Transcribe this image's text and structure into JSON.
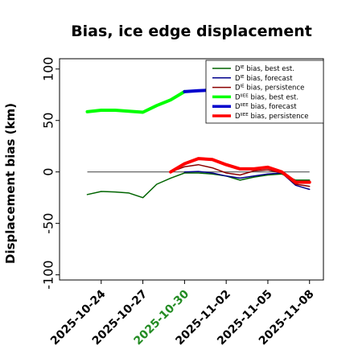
{
  "chart_data": {
    "type": "line",
    "title": "Bias, ice edge displacement",
    "ylabel": "Displacement bias (km)",
    "xlabel": "",
    "ylim": [
      -105,
      110
    ],
    "yticks": [
      -100,
      -50,
      0,
      50,
      100
    ],
    "grid": false,
    "legend_position": "top-right",
    "xlim": [
      "2025-10-21",
      "2025-11-09"
    ],
    "xticks": [
      {
        "date": "2025-10-24",
        "label": "2025-10-24",
        "color": "#000000"
      },
      {
        "date": "2025-10-27",
        "label": "2025-10-27",
        "color": "#000000"
      },
      {
        "date": "2025-10-30",
        "label": "2025-10-30",
        "color": "#228b22"
      },
      {
        "date": "2025-11-02",
        "label": "2025-11-02",
        "color": "#000000"
      },
      {
        "date": "2025-11-05",
        "label": "2025-11-05",
        "color": "#000000"
      },
      {
        "date": "2025-11-08",
        "label": "2025-11-08",
        "color": "#000000"
      }
    ],
    "zero_line": {
      "y": 0,
      "color": "#555555"
    },
    "series": [
      {
        "name_main": "D",
        "name_sup": "IE",
        "name_rest": " bias, best est.",
        "color": "#006400",
        "width": 1.5,
        "x": [
          "2025-10-23",
          "2025-10-24",
          "2025-10-25",
          "2025-10-26",
          "2025-10-27",
          "2025-10-28",
          "2025-10-29",
          "2025-10-30",
          "2025-10-31",
          "2025-11-01",
          "2025-11-02",
          "2025-11-03",
          "2025-11-04",
          "2025-11-05",
          "2025-11-06",
          "2025-11-07",
          "2025-11-08"
        ],
        "y": [
          -22,
          -19,
          -19.5,
          -20.5,
          -25,
          -12,
          -6,
          -1,
          -1,
          -2,
          -4,
          -8,
          -5,
          -3,
          -2,
          -8,
          -8
        ]
      },
      {
        "name_main": "D",
        "name_sup": "IE",
        "name_rest": " bias, forecast",
        "color": "#00008b",
        "width": 1.5,
        "x": [
          "2025-10-30",
          "2025-10-31",
          "2025-11-01",
          "2025-11-02",
          "2025-11-03",
          "2025-11-04",
          "2025-11-05",
          "2025-11-06",
          "2025-11-07",
          "2025-11-08"
        ],
        "y": [
          0,
          0.5,
          -1,
          -4,
          -6,
          -4,
          -2,
          -1,
          -13,
          -17
        ]
      },
      {
        "name_main": "D",
        "name_sup": "IE",
        "name_rest": " bias, persistence",
        "color": "#8b0000",
        "width": 1.5,
        "x": [
          "2025-10-29",
          "2025-10-30",
          "2025-10-31",
          "2025-11-01",
          "2025-11-02",
          "2025-11-03",
          "2025-11-04",
          "2025-11-05",
          "2025-11-06",
          "2025-11-07",
          "2025-11-08"
        ],
        "y": [
          0,
          5,
          7,
          4,
          -1,
          -3,
          1,
          2,
          -1,
          -12,
          -14
        ]
      },
      {
        "name_main": "D",
        "name_sup": "IIEE",
        "name_rest": " bias, best est.",
        "color": "#00ff00",
        "width": 4,
        "x": [
          "2025-10-23",
          "2025-10-24",
          "2025-10-25",
          "2025-10-26",
          "2025-10-27",
          "2025-10-28",
          "2025-10-29",
          "2025-10-30"
        ],
        "y": [
          58.5,
          60,
          60,
          59,
          58,
          64.5,
          70,
          78
        ]
      },
      {
        "name_main": "D",
        "name_sup": "IIEE",
        "name_rest": " bias, forecast",
        "color": "#0000cd",
        "width": 4,
        "x": [
          "2025-10-30",
          "2025-10-31",
          "2025-11-01",
          "2025-11-02"
        ],
        "y": [
          78,
          79,
          79.5,
          80
        ]
      },
      {
        "name_main": "D",
        "name_sup": "IIEE",
        "name_rest": " bias, persistence",
        "color": "#ff0000",
        "width": 4,
        "x": [
          "2025-10-29",
          "2025-10-30",
          "2025-10-31",
          "2025-11-01",
          "2025-11-02",
          "2025-11-03",
          "2025-11-04",
          "2025-11-05",
          "2025-11-06",
          "2025-11-07",
          "2025-11-08"
        ],
        "y": [
          0,
          8,
          13,
          12,
          7,
          3,
          3,
          4.5,
          0,
          -10,
          -10
        ]
      }
    ]
  }
}
